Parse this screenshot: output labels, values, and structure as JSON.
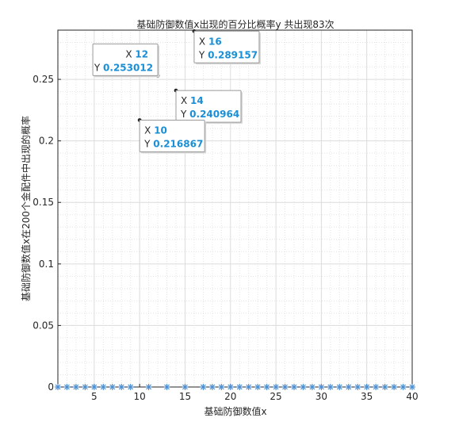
{
  "chart_data": {
    "type": "scatter",
    "title": "基础防御数值x出现的百分比概率y    共出现83次",
    "xlabel": "基础防御数值x",
    "ylabel": "基础防御数值x在200个金配件中出现的概率",
    "xlim": [
      1,
      40
    ],
    "ylim": [
      0,
      0.29
    ],
    "xticks": [
      5,
      10,
      15,
      20,
      25,
      30,
      35,
      40
    ],
    "yticks": [
      0,
      0.05,
      0.1,
      0.15,
      0.2,
      0.25
    ],
    "ytick_labels": [
      "0",
      "0.05",
      "0.1",
      "0.15",
      "0.2",
      "0.25"
    ],
    "grid": "major and minor",
    "marker": "asterisk",
    "marker_color": "#4d8fd1",
    "x": [
      1,
      2,
      3,
      4,
      5,
      6,
      7,
      8,
      9,
      10,
      11,
      12,
      13,
      14,
      15,
      16,
      17,
      18,
      19,
      20,
      21,
      22,
      23,
      24,
      25,
      26,
      27,
      28,
      29,
      30,
      31,
      32,
      33,
      34,
      35,
      36,
      37,
      38,
      39,
      40
    ],
    "y": [
      0,
      0,
      0,
      0,
      0,
      0,
      0,
      0,
      0,
      0.216867,
      0,
      0.253012,
      0,
      0.240964,
      0,
      0.289157,
      0,
      0,
      0,
      0,
      0,
      0,
      0,
      0,
      0,
      0,
      0,
      0,
      0,
      0,
      0,
      0,
      0,
      0,
      0,
      0,
      0,
      0,
      0,
      0
    ],
    "datatips": [
      {
        "x": 12,
        "y": 0.253012,
        "x_label": "12",
        "y_label": "0.253012",
        "side": "left"
      },
      {
        "x": 16,
        "y": 0.289157,
        "x_label": "16",
        "y_label": "0.289157",
        "side": "right"
      },
      {
        "x": 14,
        "y": 0.240964,
        "x_label": "14",
        "y_label": "0.240964",
        "side": "right"
      },
      {
        "x": 10,
        "y": 0.216867,
        "x_label": "10",
        "y_label": "0.216867",
        "side": "right"
      }
    ],
    "datatip_prefix_x": "X",
    "datatip_prefix_y": "Y"
  }
}
